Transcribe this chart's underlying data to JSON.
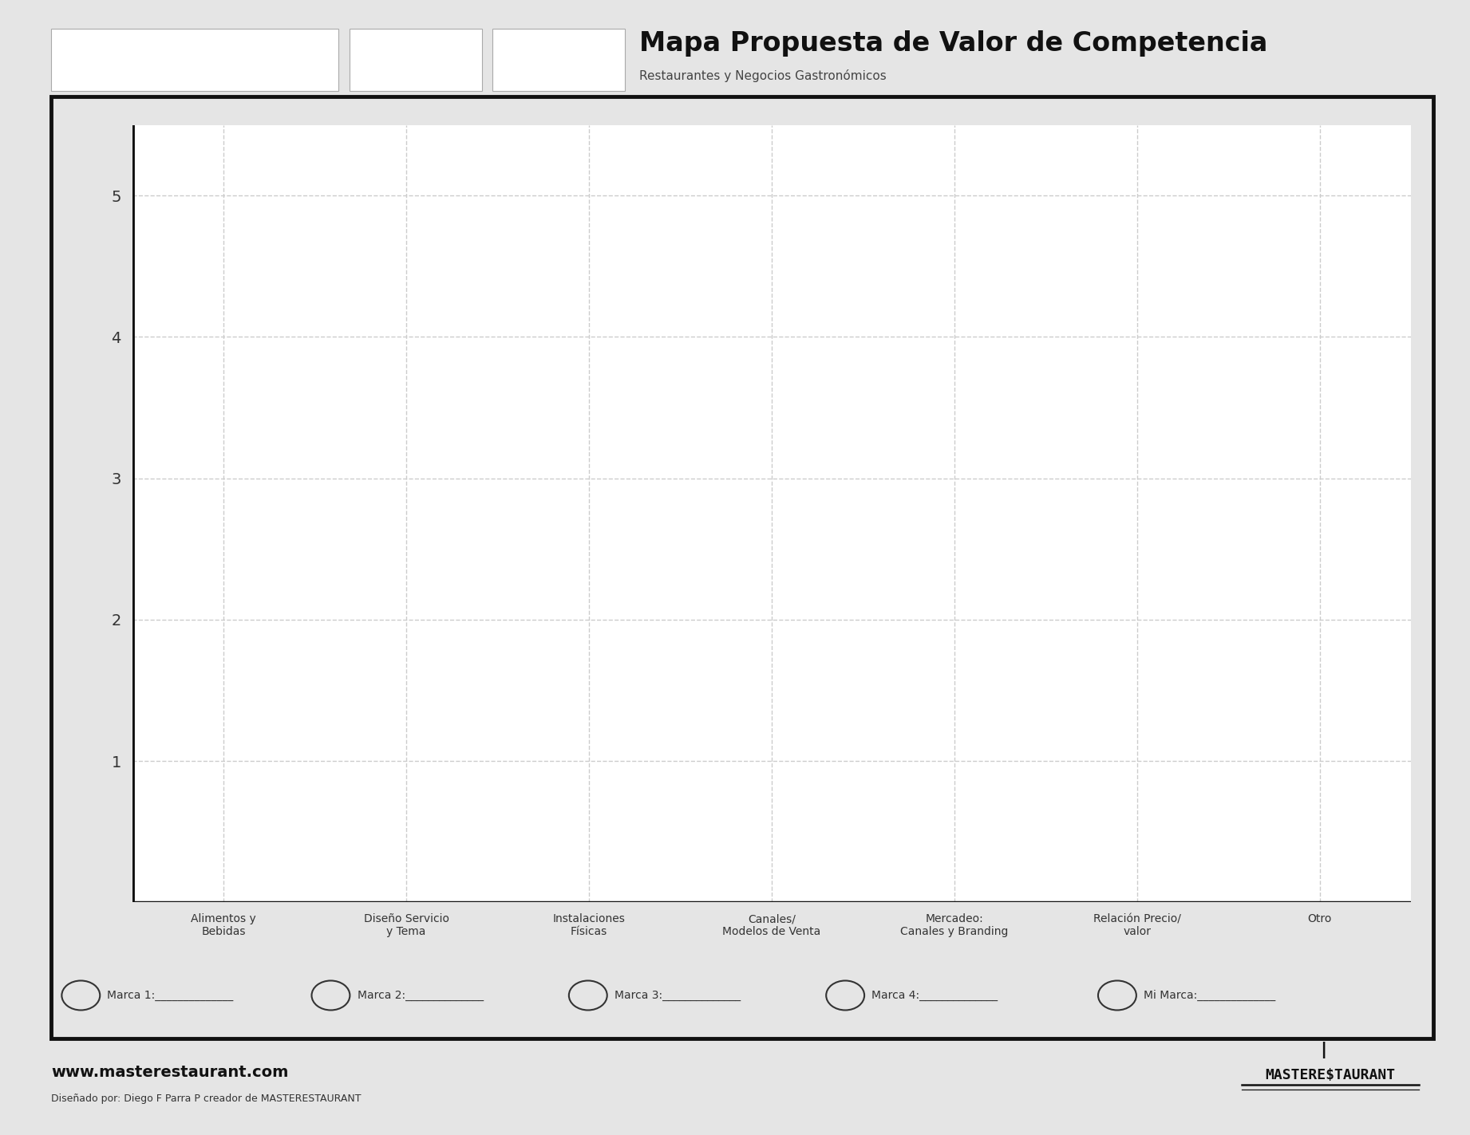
{
  "title": "Mapa Propuesta de Valor de Competencia",
  "subtitle": "Restaurantes y Negocios Gastronómicos",
  "background_color": "#e5e5e5",
  "chart_background": "#ffffff",
  "yticks": [
    1,
    2,
    3,
    4,
    5
  ],
  "ylim": [
    0,
    5.5
  ],
  "xlim": [
    -0.5,
    6.5
  ],
  "x_categories": [
    "Alimentos y\nBebidas",
    "Diseño Servicio\ny Tema",
    "Instalaciones\nFísicas",
    "Canales/\nModelos de Venta",
    "Mercadeo:\nCanales y Branding",
    "Relación Precio/\nvalor",
    "Otro"
  ],
  "legend_circles": [
    "Marca 1:",
    "Marca 2:",
    "Marca 3:",
    "Marca 4:",
    "Mi Marca:"
  ],
  "footer_website": "www.masterestaurant.com",
  "footer_credit": "Diseñado por: Diego F Parra P creador de MASTERESTAURANT",
  "grid_color": "#cccccc",
  "axis_color": "#111111",
  "title_fontsize": 24,
  "subtitle_fontsize": 11,
  "ytick_fontsize": 14,
  "xtick_fontsize": 10,
  "legend_fontsize": 10,
  "header_label_fontsize": 8,
  "footer_web_fontsize": 14,
  "footer_credit_fontsize": 9
}
